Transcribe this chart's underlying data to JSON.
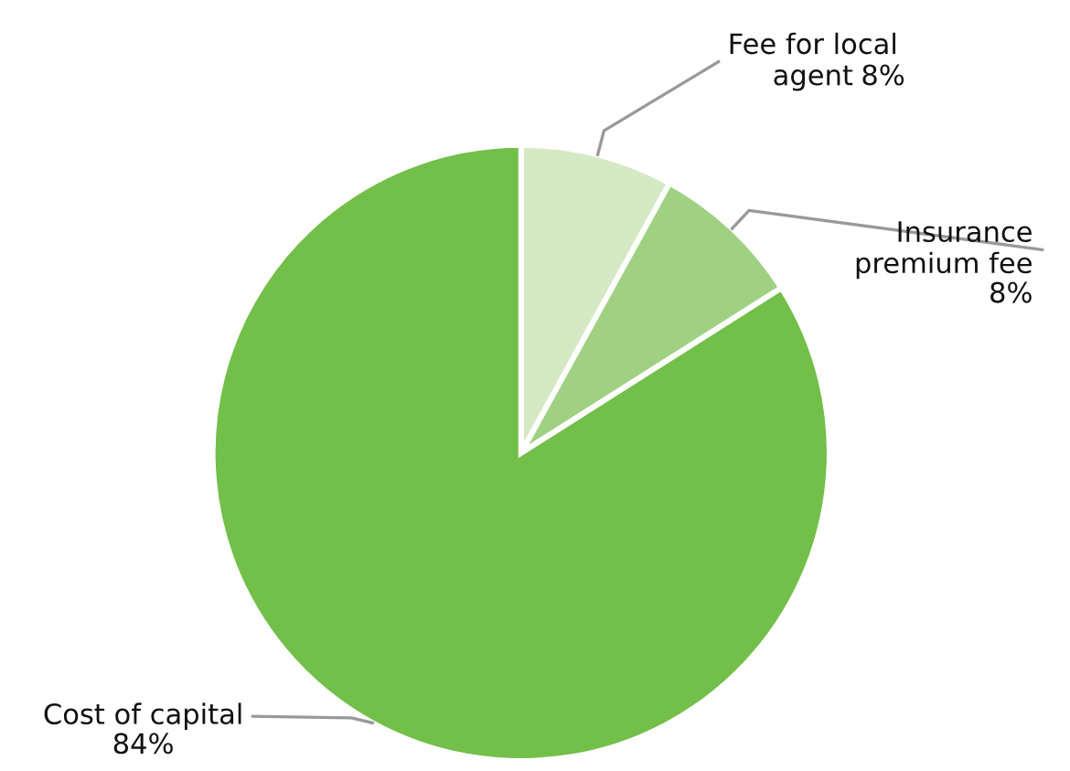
{
  "chart_data": {
    "type": "pie",
    "categories": [
      "Fee for local\nagent",
      "Insurance\npremium fee",
      "Cost of capital"
    ],
    "values": [
      8,
      8,
      84
    ],
    "colors": [
      "#d4e9c4",
      "#a0d183",
      "#72bf4a"
    ],
    "value_labels": [
      "8%",
      "8%",
      "84%"
    ]
  }
}
